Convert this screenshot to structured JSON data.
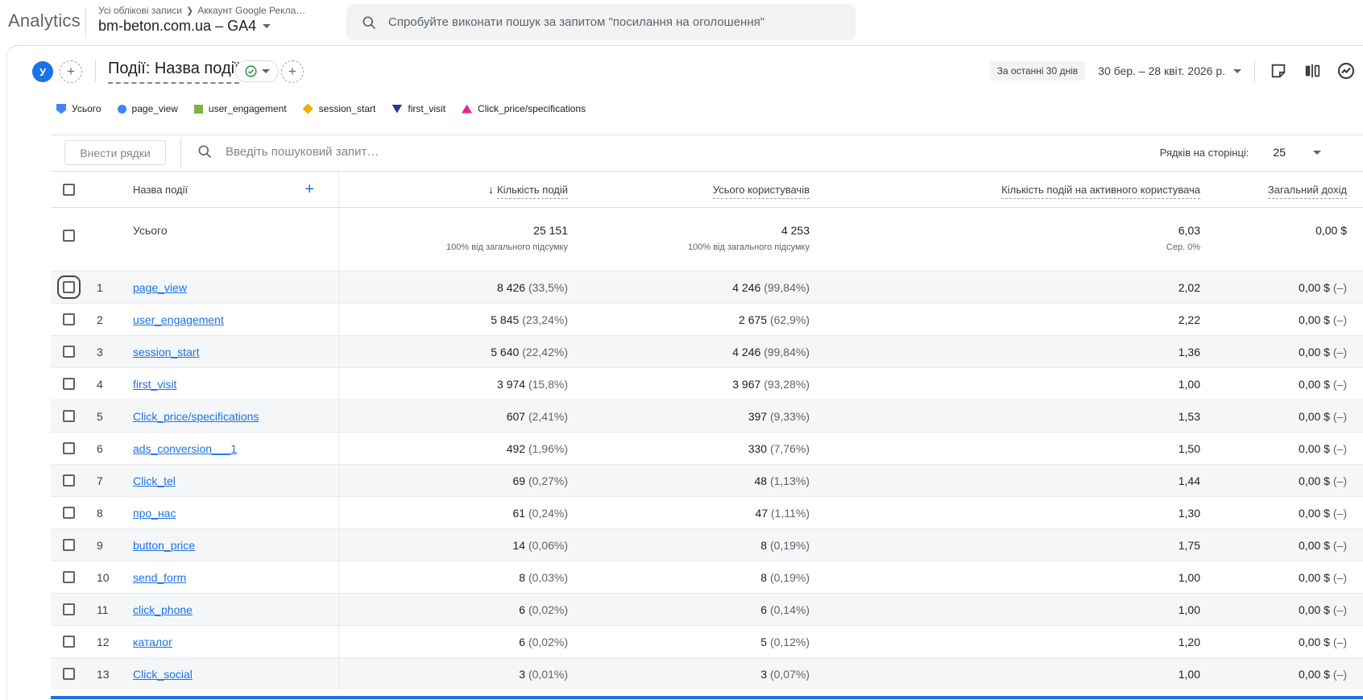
{
  "topbar": {
    "logo": "Analytics",
    "breadcrumb_root": "Усі облікові записи",
    "breadcrumb_current": "Аккаунт Google Рекла…",
    "property_name": "bm-beton.com.ua – GA4",
    "search_placeholder": "Спробуйте виконати пошук за запитом \"посилання на оголошення\""
  },
  "report": {
    "segment_avatar": "У",
    "title": "Події: Назва події",
    "date_preset": "За останні 30 днів",
    "date_range": "30 бер. – 28 квіт. 2026 р."
  },
  "legend": [
    {
      "label": "Усього",
      "shape": "pin",
      "color": "#4285f4"
    },
    {
      "label": "page_view",
      "shape": "circle",
      "color": "#4285f4"
    },
    {
      "label": "user_engagement",
      "shape": "square",
      "color": "#7cb342"
    },
    {
      "label": "session_start",
      "shape": "diamond",
      "color": "#f9ab00"
    },
    {
      "label": "first_visit",
      "shape": "tri-down",
      "color": "#283593"
    },
    {
      "label": "Click_price/specifications",
      "shape": "tri-up",
      "color": "#e52592"
    }
  ],
  "controls": {
    "apply_rows": "Внести рядки",
    "search_placeholder": "Введіть пошуковий запит…",
    "rows_per_page_label": "Рядків на сторінці:",
    "rows_per_page_value": "25"
  },
  "table": {
    "name_header": "Назва події",
    "columns": [
      "Кількість подій",
      "Усього користувачів",
      "Кількість подій на активного користувача",
      "Загальний дохід"
    ],
    "totals": {
      "label": "Усього",
      "events": "25 151",
      "events_sub": "100% від загального підсумку",
      "users": "4 253",
      "users_sub": "100% від загального підсумку",
      "per_user": "6,03",
      "per_user_sub": "Сер. 0%",
      "revenue": "0,00 $"
    },
    "rows": [
      {
        "index": "1",
        "name": "page_view",
        "events": "8 426",
        "events_pct": "(33,5%)",
        "users": "4 246",
        "users_pct": "(99,84%)",
        "per_user": "2,02",
        "revenue": "0,00 $",
        "revenue_suffix": "(–)",
        "focused": true
      },
      {
        "index": "2",
        "name": "user_engagement",
        "events": "5 845",
        "events_pct": "(23,24%)",
        "users": "2 675",
        "users_pct": "(62,9%)",
        "per_user": "2,22",
        "revenue": "0,00 $",
        "revenue_suffix": "(–)"
      },
      {
        "index": "3",
        "name": "session_start",
        "events": "5 640",
        "events_pct": "(22,42%)",
        "users": "4 246",
        "users_pct": "(99,84%)",
        "per_user": "1,36",
        "revenue": "0,00 $",
        "revenue_suffix": "(–)"
      },
      {
        "index": "4",
        "name": "first_visit",
        "events": "3 974",
        "events_pct": "(15,8%)",
        "users": "3 967",
        "users_pct": "(93,28%)",
        "per_user": "1,00",
        "revenue": "0,00 $",
        "revenue_suffix": "(–)"
      },
      {
        "index": "5",
        "name": "Click_price/specifications",
        "events": "607",
        "events_pct": "(2,41%)",
        "users": "397",
        "users_pct": "(9,33%)",
        "per_user": "1,53",
        "revenue": "0,00 $",
        "revenue_suffix": "(–)"
      },
      {
        "index": "6",
        "name": "ads_conversion___1",
        "events": "492",
        "events_pct": "(1,96%)",
        "users": "330",
        "users_pct": "(7,76%)",
        "per_user": "1,50",
        "revenue": "0,00 $",
        "revenue_suffix": "(–)"
      },
      {
        "index": "7",
        "name": "Click_tel",
        "events": "69",
        "events_pct": "(0,27%)",
        "users": "48",
        "users_pct": "(1,13%)",
        "per_user": "1,44",
        "revenue": "0,00 $",
        "revenue_suffix": "(–)"
      },
      {
        "index": "8",
        "name": "про_нас",
        "events": "61",
        "events_pct": "(0,24%)",
        "users": "47",
        "users_pct": "(1,11%)",
        "per_user": "1,30",
        "revenue": "0,00 $",
        "revenue_suffix": "(–)"
      },
      {
        "index": "9",
        "name": "button_price",
        "events": "14",
        "events_pct": "(0,06%)",
        "users": "8",
        "users_pct": "(0,19%)",
        "per_user": "1,75",
        "revenue": "0,00 $",
        "revenue_suffix": "(–)"
      },
      {
        "index": "10",
        "name": "send_form",
        "events": "8",
        "events_pct": "(0,03%)",
        "users": "8",
        "users_pct": "(0,19%)",
        "per_user": "1,00",
        "revenue": "0,00 $",
        "revenue_suffix": "(–)"
      },
      {
        "index": "11",
        "name": "click_phone",
        "events": "6",
        "events_pct": "(0,02%)",
        "users": "6",
        "users_pct": "(0,14%)",
        "per_user": "1,00",
        "revenue": "0,00 $",
        "revenue_suffix": "(–)"
      },
      {
        "index": "12",
        "name": "каталог",
        "events": "6",
        "events_pct": "(0,02%)",
        "users": "5",
        "users_pct": "(0,12%)",
        "per_user": "1,20",
        "revenue": "0,00 $",
        "revenue_suffix": "(–)"
      },
      {
        "index": "13",
        "name": "Click_social",
        "events": "3",
        "events_pct": "(0,01%)",
        "users": "3",
        "users_pct": "(0,07%)",
        "per_user": "1,00",
        "revenue": "0,00 $",
        "revenue_suffix": "(–)"
      }
    ]
  }
}
